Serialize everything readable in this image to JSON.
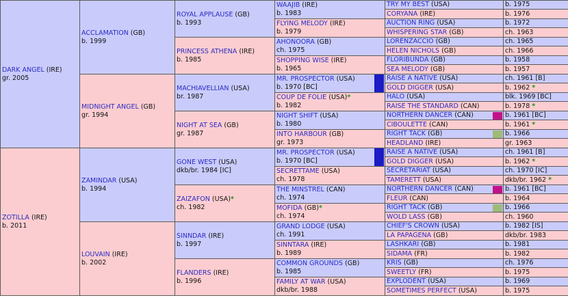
{
  "horse": {
    "name": "ZOTILLA",
    "country": "(IRE)",
    "info": "b. 2011"
  },
  "colors": {
    "sire_side": "#c9cbfb",
    "dam_side": "#fccdd0",
    "link": "#2b2bc3",
    "star": "#18961a",
    "marker_blue": "#1c1cc4",
    "marker_magenta": "#c3118a",
    "marker_olive": "#9dbb77"
  },
  "gen1": [
    {
      "name": "DARK ANGEL",
      "country": "(IRE)",
      "info": "gr. 2005"
    },
    {
      "name": "ZOTILLA",
      "country": "(IRE)",
      "info": "b. 2011"
    }
  ],
  "gen2": [
    {
      "name": "ACCLAMATION",
      "country": "(GB)",
      "info": "b. 1999"
    },
    {
      "name": "MIDNIGHT ANGEL",
      "country": "(GB)",
      "info": "gr. 1994"
    },
    {
      "name": "ZAMINDAR",
      "country": "(USA)",
      "info": "b. 1994"
    },
    {
      "name": "LOUVAIN",
      "country": "(IRE)",
      "info": "b. 2002"
    }
  ],
  "gen3": [
    {
      "name": "ROYAL APPLAUSE",
      "country": "(GB)",
      "info": "b. 1993"
    },
    {
      "name": "PRINCESS ATHENA",
      "country": "(IRE)",
      "info": "b. 1985"
    },
    {
      "name": "MACHIAVELLIAN",
      "country": "(USA)",
      "info": "br. 1987"
    },
    {
      "name": "NIGHT AT SEA",
      "country": "(GB)",
      "info": "gr. 1987"
    },
    {
      "name": "GONE WEST",
      "country": "(USA)",
      "info": "dkb/br. 1984 [IC]"
    },
    {
      "name": "ZAIZAFON",
      "country": "(USA)",
      "star": "*",
      "info": "ch. 1982"
    },
    {
      "name": "SINNDAR",
      "country": "(IRE)",
      "info": "b. 1997"
    },
    {
      "name": "FLANDERS",
      "country": "(IRE)",
      "info": "b. 1996"
    }
  ],
  "gen4": [
    {
      "name": "WAAJIB",
      "country": "(IRE)",
      "info": "b. 1983"
    },
    {
      "name": "FLYING MELODY",
      "country": "(IRE)",
      "info": "b. 1979"
    },
    {
      "name": "AHONOORA",
      "country": "(GB)",
      "info": "ch. 1975"
    },
    {
      "name": "SHOPPING WISE",
      "country": "(IRE)",
      "info": "b. 1965"
    },
    {
      "name": "MR. PROSPECTOR",
      "country": "(USA)",
      "info": "b. 1970 [BC]",
      "marker": "marker_blue"
    },
    {
      "name": "COUP DE FOLIE",
      "country": "(USA)",
      "star": "*",
      "info": "b. 1982"
    },
    {
      "name": "NIGHT SHIFT",
      "country": "(USA)",
      "info": "b. 1980"
    },
    {
      "name": "INTO HARBOUR",
      "country": "(GB)",
      "info": "gr. 1973"
    },
    {
      "name": "MR. PROSPECTOR",
      "country": "(USA)",
      "info": "b. 1970 [BC]",
      "marker": "marker_blue"
    },
    {
      "name": "SECRETTAME",
      "country": "(USA)",
      "info": "ch. 1978"
    },
    {
      "name": "THE MINSTREL",
      "country": "(CAN)",
      "info": "ch. 1974"
    },
    {
      "name": "MOFIDA",
      "country": "(GB)",
      "star": "*",
      "info": "ch. 1974"
    },
    {
      "name": "GRAND LODGE",
      "country": "(USA)",
      "info": "ch. 1991"
    },
    {
      "name": "SINNTARA",
      "country": "(IRE)",
      "info": "b. 1989"
    },
    {
      "name": "COMMON GROUNDS",
      "country": "(GB)",
      "info": "b. 1985"
    },
    {
      "name": "FAMILY AT WAR",
      "country": "(USA)",
      "info": "dkb/br. 1988"
    }
  ],
  "gen5": [
    {
      "name": "TRY MY BEST",
      "country": "(USA)",
      "info": "b. 1975"
    },
    {
      "name": "CORYANA",
      "country": "(IRE)",
      "info": "b. 1976"
    },
    {
      "name": "AUCTION RING",
      "country": "(USA)",
      "info": "b. 1972"
    },
    {
      "name": "WHISPERING STAR",
      "country": "(GB)",
      "info": "ch. 1963"
    },
    {
      "name": "LORENZACCIO",
      "country": "(GB)",
      "info": "ch. 1965"
    },
    {
      "name": "HELEN NICHOLS",
      "country": "(GB)",
      "info": "ch. 1966"
    },
    {
      "name": "FLORIBUNDA",
      "country": "(GB)",
      "info": "b. 1958"
    },
    {
      "name": "SEA MELODY",
      "country": "(GB)",
      "info": "b. 1957"
    },
    {
      "name": "RAISE A NATIVE",
      "country": "(USA)",
      "info": "ch. 1961 [B]"
    },
    {
      "name": "GOLD DIGGER",
      "country": "(USA)",
      "info": "b. 1962",
      "star": "*"
    },
    {
      "name": "HALO",
      "country": "(USA)",
      "info": "blk. 1969 [BC]"
    },
    {
      "name": "RAISE THE STANDARD",
      "country": "(CAN)",
      "info": "b. 1978",
      "star": "*"
    },
    {
      "name": "NORTHERN DANCER",
      "country": "(CAN)",
      "info": "b. 1961 [BC]",
      "marker": "marker_magenta"
    },
    {
      "name": "CIBOULETTE",
      "country": "(CAN)",
      "info": "b. 1961",
      "star": "*"
    },
    {
      "name": "RIGHT TACK",
      "country": "(GB)",
      "info": "b. 1966",
      "marker": "marker_olive"
    },
    {
      "name": "HEADLAND",
      "country": "(IRE)",
      "info": "gr. 1963"
    },
    {
      "name": "RAISE A NATIVE",
      "country": "(USA)",
      "info": "ch. 1961 [B]"
    },
    {
      "name": "GOLD DIGGER",
      "country": "(USA)",
      "info": "b. 1962",
      "star": "*"
    },
    {
      "name": "SECRETARIAT",
      "country": "(USA)",
      "info": "ch. 1970 [IC]"
    },
    {
      "name": "TAMERETT",
      "country": "(USA)",
      "info": "dkb/br. 1962",
      "star": "*"
    },
    {
      "name": "NORTHERN DANCER",
      "country": "(CAN)",
      "info": "b. 1961 [BC]",
      "marker": "marker_magenta"
    },
    {
      "name": "FLEUR",
      "country": "(CAN)",
      "info": "b. 1964"
    },
    {
      "name": "RIGHT TACK",
      "country": "(GB)",
      "info": "b. 1966",
      "marker": "marker_olive"
    },
    {
      "name": "WOLD LASS",
      "country": "(GB)",
      "info": "ch. 1960"
    },
    {
      "name": "CHIEF'S CROWN",
      "country": "(USA)",
      "info": "b. 1982 [IS]"
    },
    {
      "name": "LA PAPAGENA",
      "country": "(GB)",
      "info": "dkb/br. 1983"
    },
    {
      "name": "LASHKARI",
      "country": "(GB)",
      "info": "b. 1981"
    },
    {
      "name": "SIDAMA",
      "country": "(FR)",
      "info": "b. 1982"
    },
    {
      "name": "KRIS",
      "country": "(GB)",
      "info": "ch. 1976"
    },
    {
      "name": "SWEETLY",
      "country": "(FR)",
      "info": "b. 1975"
    },
    {
      "name": "EXPLODENT",
      "country": "(USA)",
      "info": "b. 1969"
    },
    {
      "name": "SOMETIMES PERFECT",
      "country": "(USA)",
      "info": "b. 1975"
    }
  ]
}
